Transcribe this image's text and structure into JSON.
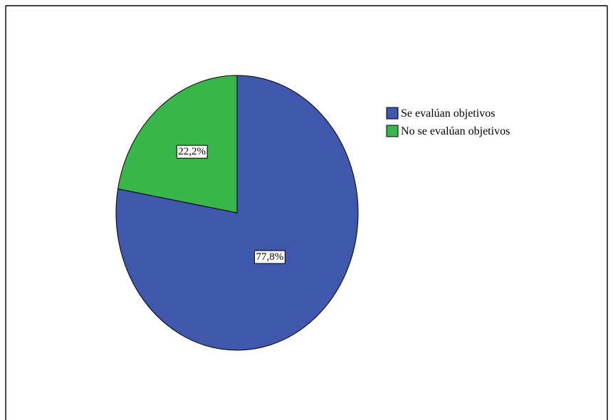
{
  "chart_data": {
    "type": "pie",
    "title": "",
    "categories": [
      "Se evalúan objetivos",
      "No se evalúan objetivos"
    ],
    "values": [
      77.8,
      22.2
    ],
    "labels": [
      "77,8%",
      "22,2%"
    ],
    "colors": [
      "#3f58ac",
      "#38b64a"
    ],
    "start_angle_deg": 0,
    "direction": "clockwise",
    "legend": {
      "position": "right",
      "entries": [
        "Se evalúan objetivos",
        "No se evalúan objetivos"
      ]
    }
  }
}
